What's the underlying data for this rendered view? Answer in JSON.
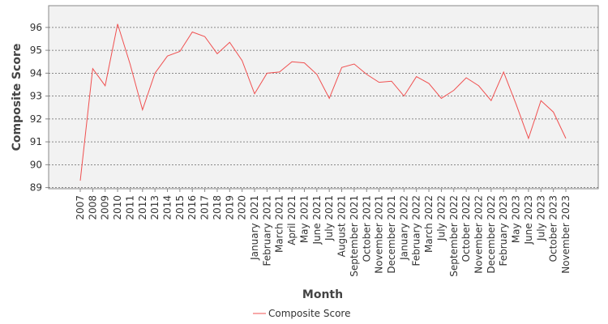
{
  "chart_data": {
    "type": "line",
    "x_label": "Month",
    "y_label": "Composite Score",
    "categories": [
      "2007",
      "2008",
      "2009",
      "2010",
      "2011",
      "2012",
      "2013",
      "2014",
      "2015",
      "2016",
      "2017",
      "2018",
      "2019",
      "2020",
      "January 2021",
      "February 2021",
      "March 2021",
      "April 2021",
      "May 2021",
      "June 2021",
      "July 2021",
      "August 2021",
      "September 2021",
      "October 2021",
      "November 2021",
      "December 2021",
      "January 2022",
      "February 2022",
      "March 2022",
      "July 2022",
      "September 2022",
      "October 2022",
      "November 2022",
      "December 2022",
      "February 2023",
      "May 2023",
      "June 2023",
      "July 2023",
      "October 2023",
      "November 2023"
    ],
    "series": [
      {
        "name": "Composite Score",
        "color": "#f05050",
        "values": [
          89.3,
          94.2,
          93.45,
          96.15,
          94.4,
          92.4,
          94.0,
          94.75,
          94.95,
          95.8,
          95.6,
          94.85,
          95.35,
          94.55,
          93.1,
          94.0,
          94.05,
          94.5,
          94.45,
          93.95,
          92.9,
          94.25,
          94.4,
          93.95,
          93.6,
          93.65,
          93.0,
          93.85,
          93.55,
          92.9,
          93.25,
          93.8,
          93.45,
          92.8,
          94.05,
          92.65,
          91.15,
          92.8,
          92.3,
          91.15
        ]
      }
    ],
    "ylim": [
      88.95,
      96.95
    ],
    "yticks": [
      89,
      90,
      91,
      92,
      93,
      94,
      95,
      96
    ],
    "grid": true,
    "legend": "bottom"
  }
}
